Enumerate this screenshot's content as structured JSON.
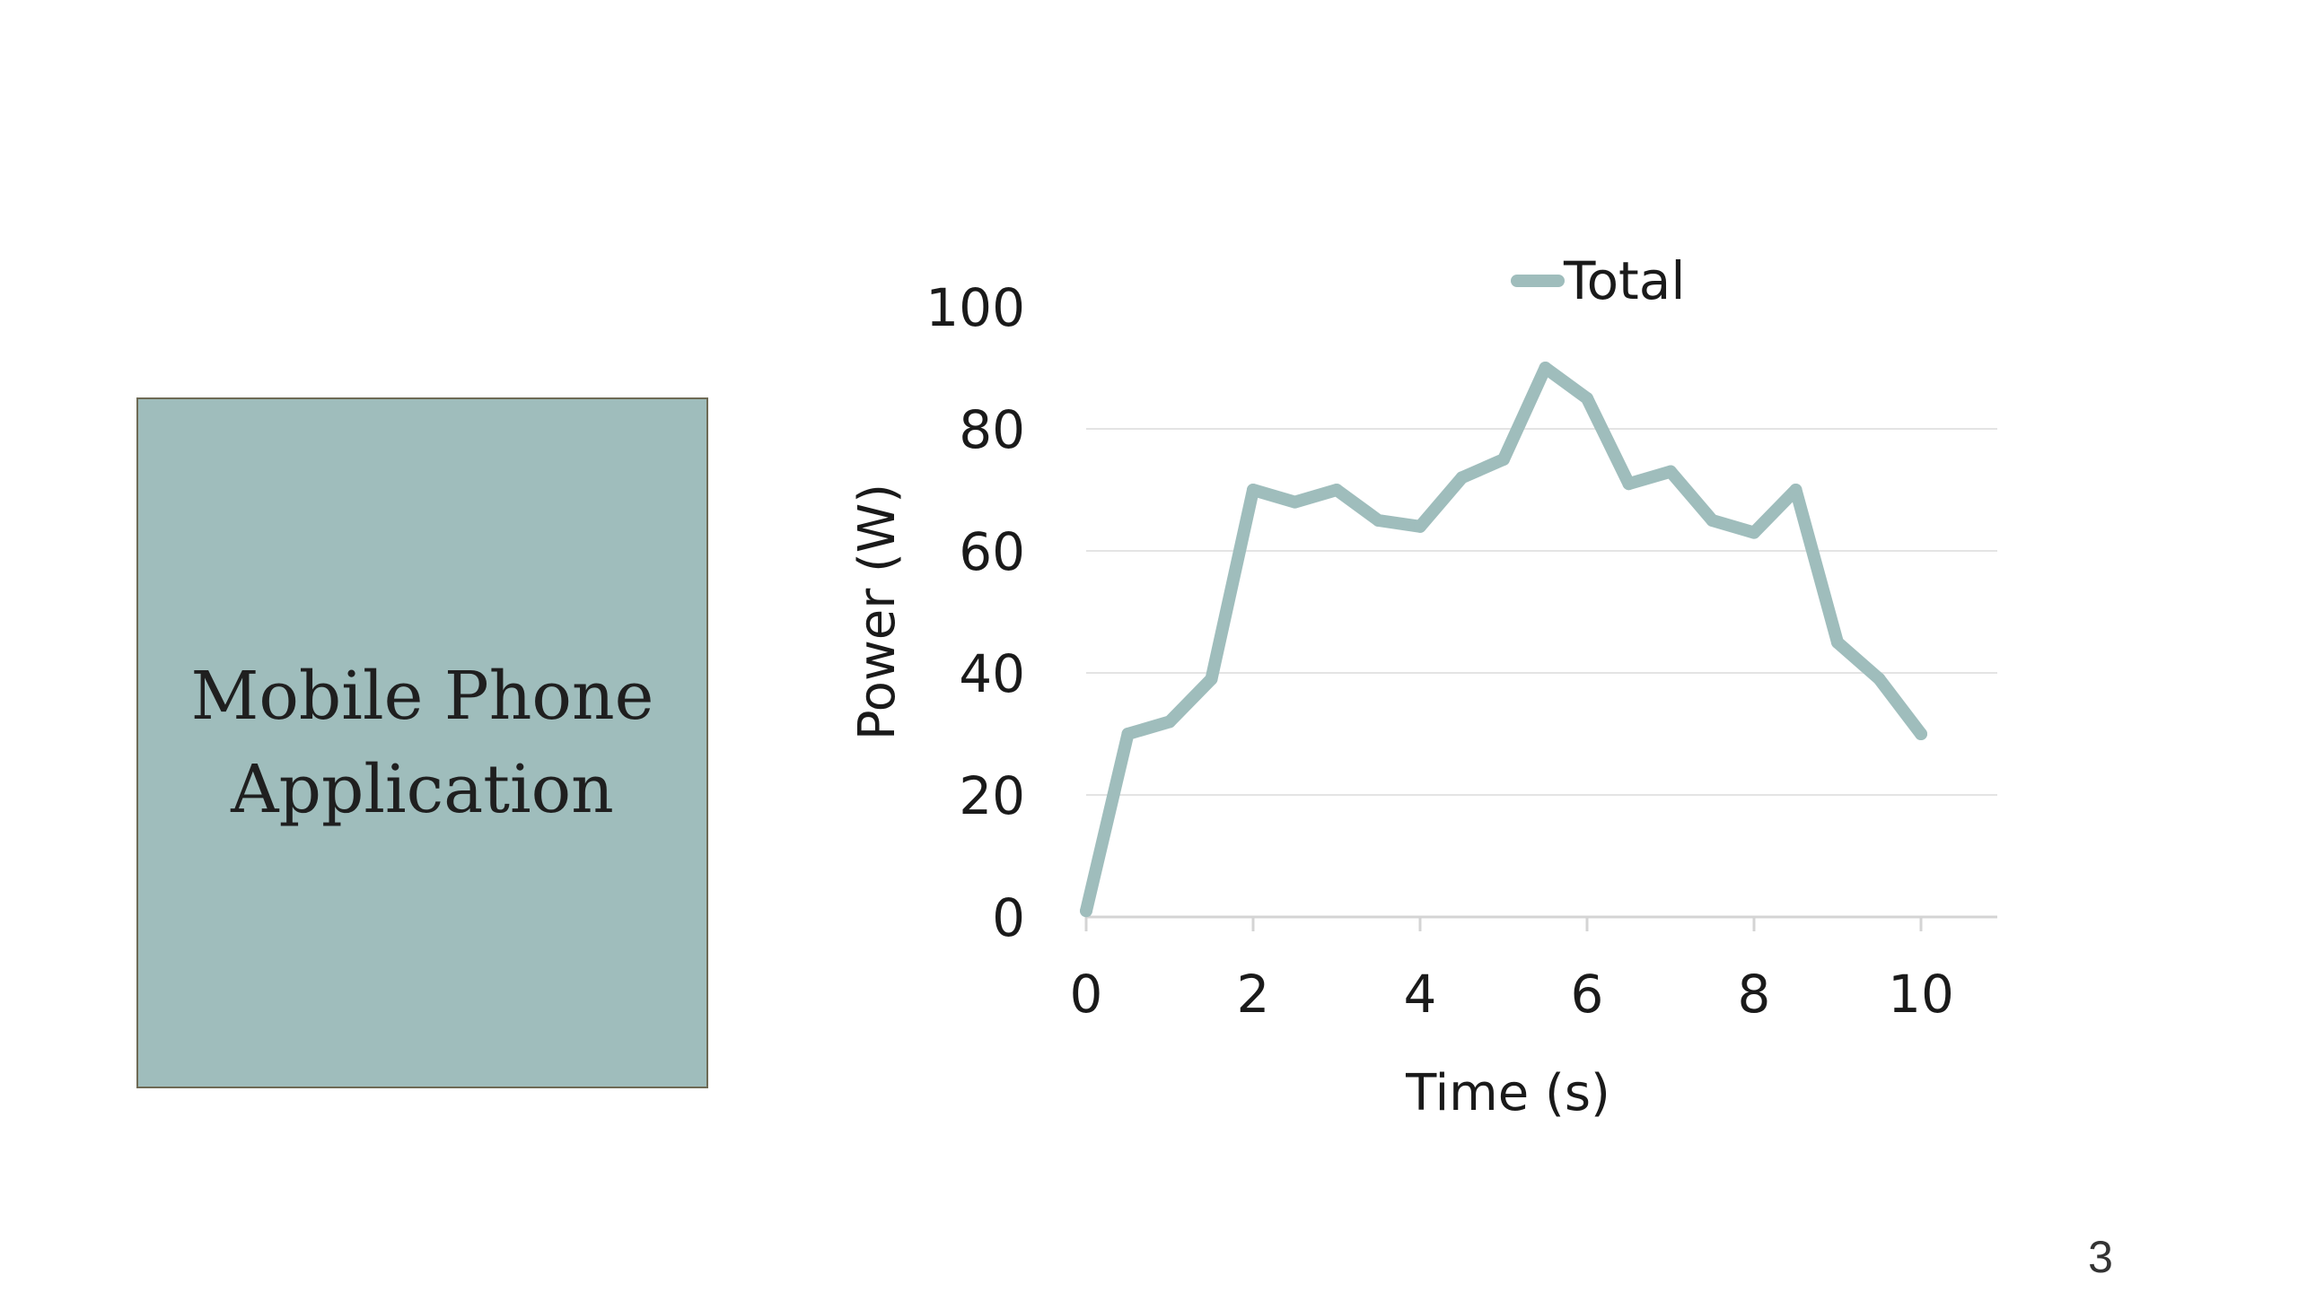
{
  "box": {
    "text": "Mobile Phone\nApplication"
  },
  "page_number": "3",
  "colors": {
    "series": "#9fbdbc",
    "gridline": "#e4e4e4",
    "axis": "#d4d4d4",
    "text": "#1a1a1a"
  },
  "chart_data": {
    "type": "line",
    "title": "",
    "xlabel": "Time (s)",
    "ylabel": "Power (W)",
    "xlim": [
      0,
      10
    ],
    "ylim": [
      0,
      100
    ],
    "xticks": [
      0,
      2,
      4,
      6,
      8,
      10
    ],
    "yticks": [
      0,
      20,
      40,
      60,
      80,
      100
    ],
    "grid": true,
    "legend": "top",
    "series": [
      {
        "name": "Total",
        "x": [
          0,
          0.5,
          1,
          1.5,
          2,
          2.5,
          3,
          3.5,
          4,
          4.5,
          5,
          5.5,
          6,
          6.5,
          7,
          7.5,
          8,
          8.5,
          9,
          9.5,
          10
        ],
        "y": [
          1,
          30,
          32,
          39,
          70,
          68,
          70,
          65,
          64,
          72,
          75,
          90,
          85,
          71,
          73,
          65,
          63,
          70,
          45,
          39,
          30
        ]
      }
    ]
  }
}
